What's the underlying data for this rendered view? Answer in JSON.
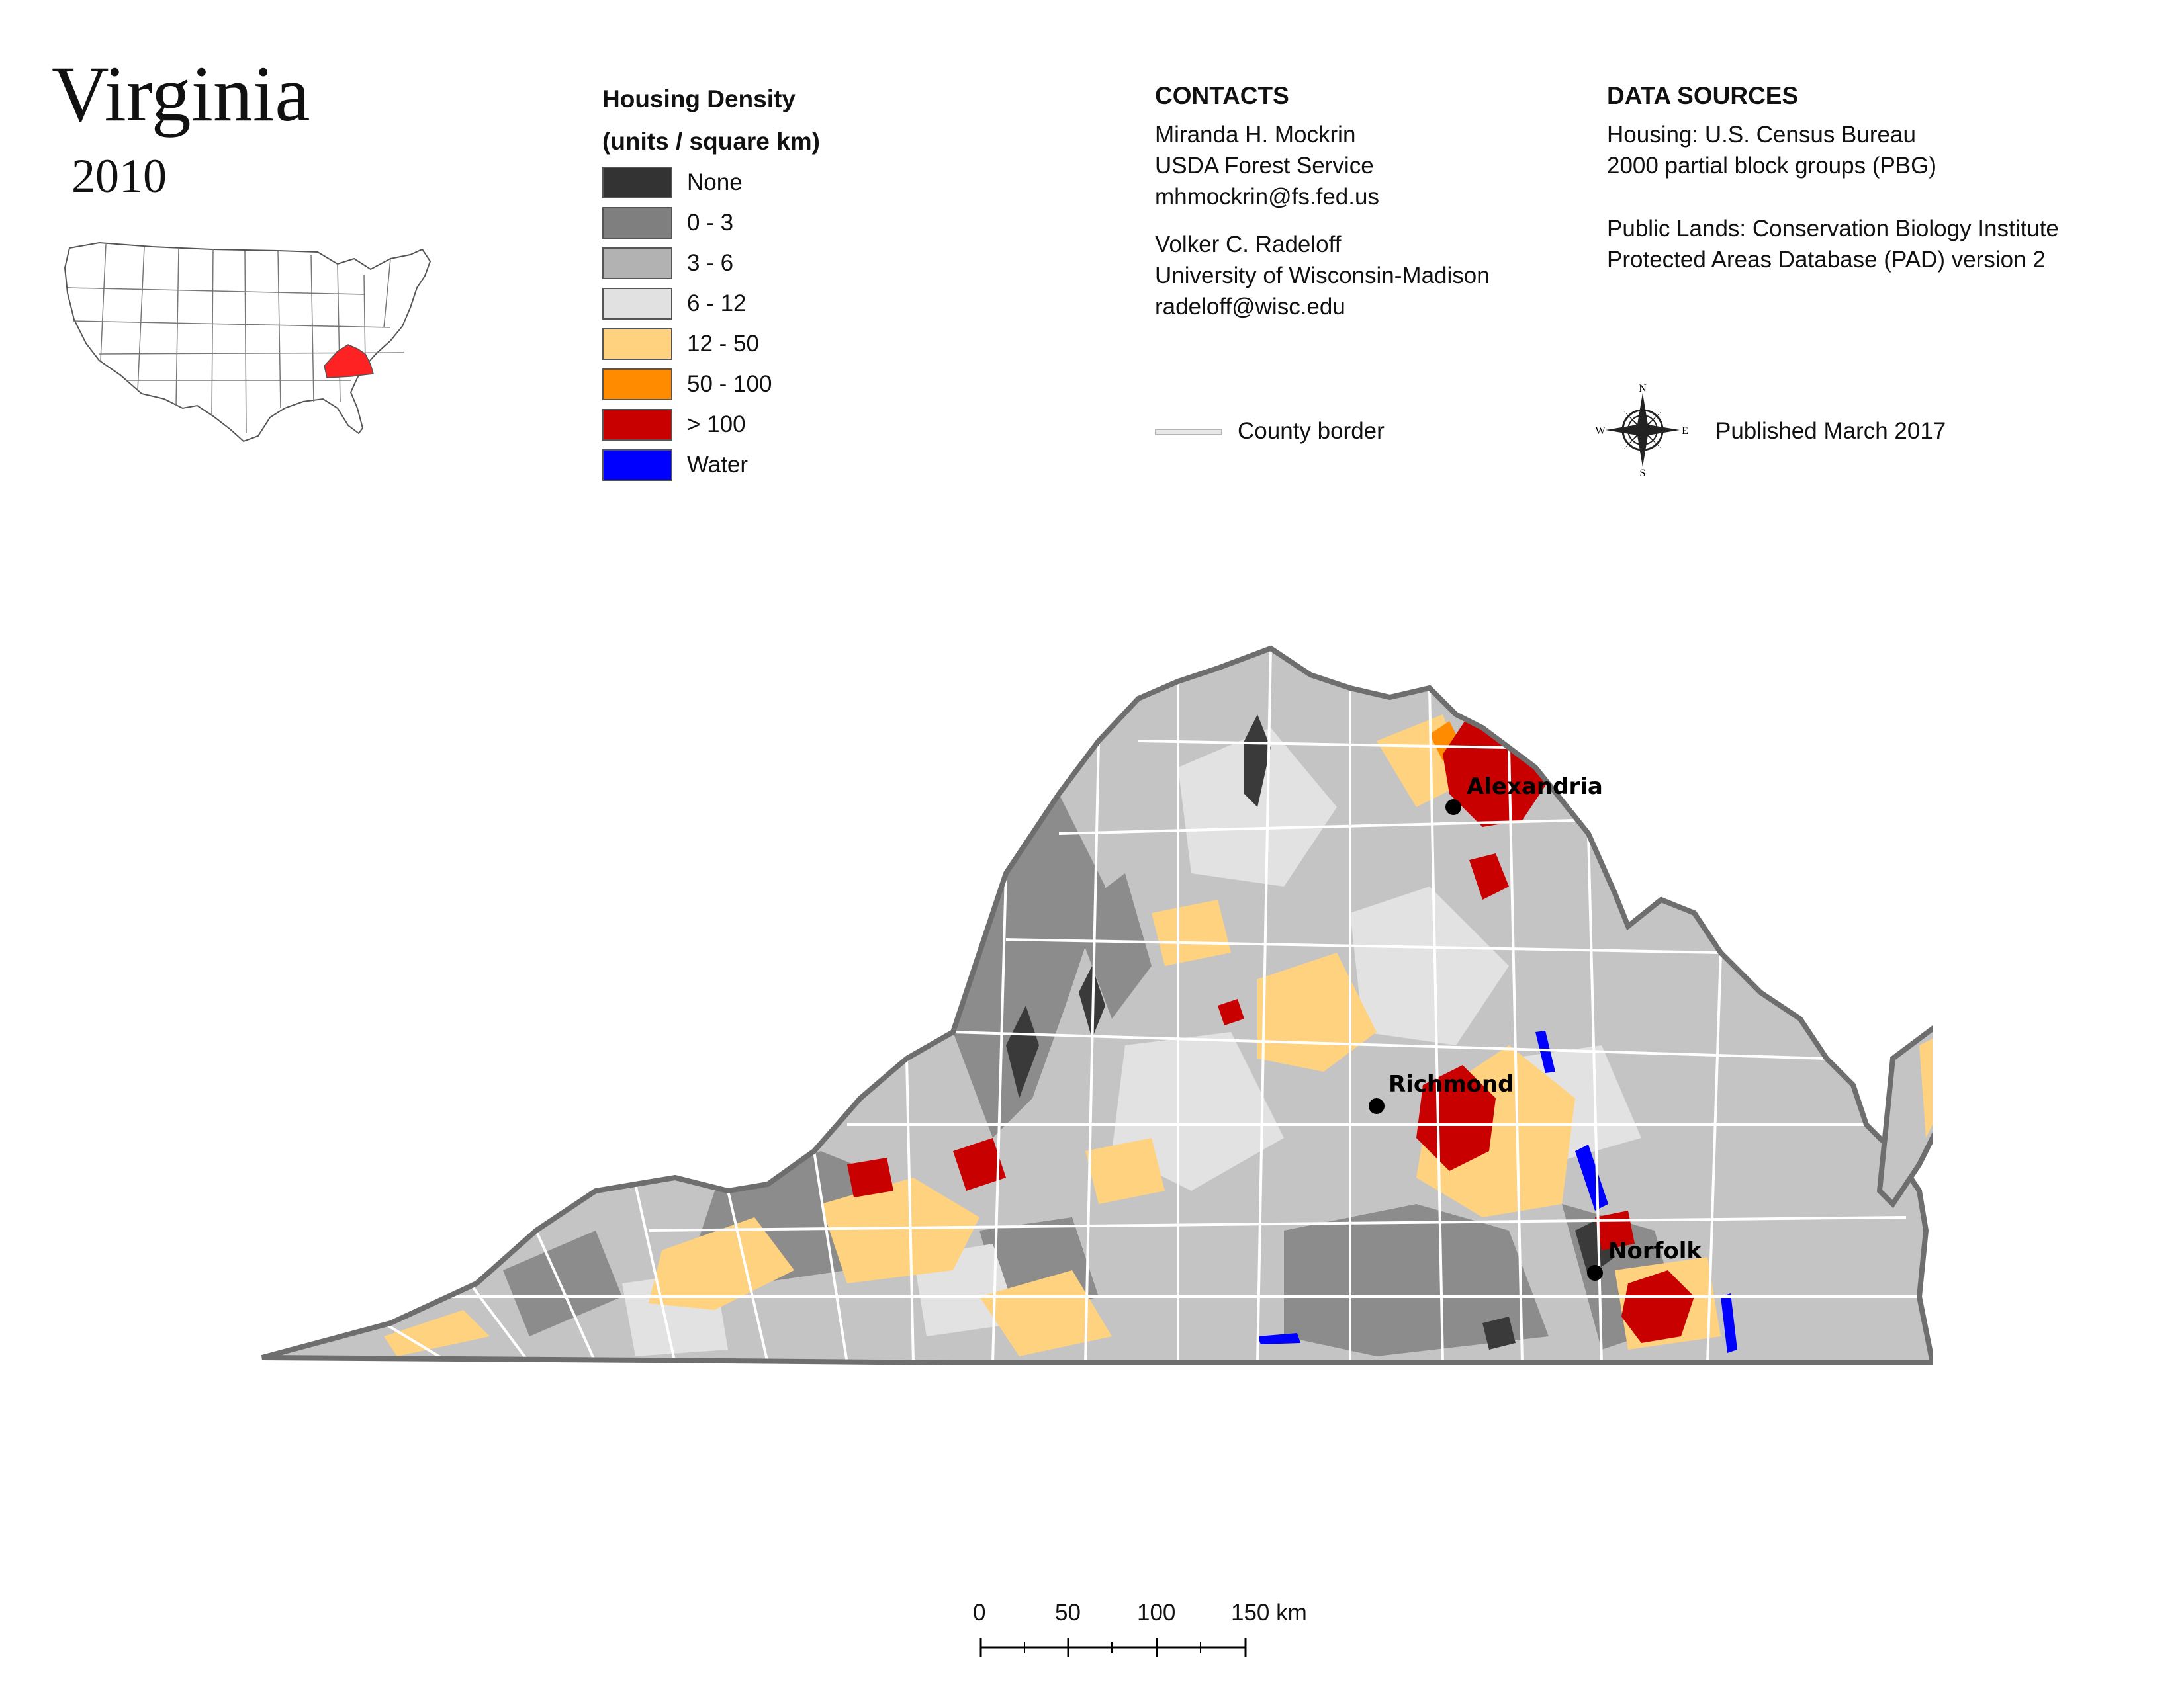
{
  "title": "Virginia",
  "year": "2010",
  "legend": {
    "title_line1": "Housing Density",
    "title_line2": "(units / square km)",
    "items": [
      {
        "label": "None",
        "color": "#333333"
      },
      {
        "label": "0 - 3",
        "color": "#7f7f7f"
      },
      {
        "label": "3 - 6",
        "color": "#b2b2b2"
      },
      {
        "label": "6 - 12",
        "color": "#e1e1e1"
      },
      {
        "label": "12 - 50",
        "color": "#ffd27f"
      },
      {
        "label": "50 - 100",
        "color": "#ff8c00"
      },
      {
        "label": "> 100",
        "color": "#c80000"
      },
      {
        "label": "Water",
        "color": "#0000ff"
      }
    ]
  },
  "contacts": {
    "heading": "CONTACTS",
    "person1": {
      "name": "Miranda H. Mockrin",
      "org": "USDA Forest Service",
      "email": "mhmockrin@fs.fed.us"
    },
    "person2": {
      "name": "Volker C. Radeloff",
      "org": "University of Wisconsin-Madison",
      "email": "radeloff@wisc.edu"
    }
  },
  "sources": {
    "heading": "DATA SOURCES",
    "housing_line1": "Housing: U.S. Census Bureau",
    "housing_line2": "2000 partial block groups (PBG)",
    "lands_line1": "Public Lands: Conservation Biology Institute",
    "lands_line2": "Protected Areas Database (PAD) version 2"
  },
  "county_border_label": "County border",
  "published": "Published March 2017",
  "compass": {
    "n": "N",
    "s": "S",
    "e": "E",
    "w": "W"
  },
  "cities": [
    {
      "name": "Alexandria"
    },
    {
      "name": "Richmond"
    },
    {
      "name": "Norfolk"
    }
  ],
  "scale_bar": {
    "ticks": [
      "0",
      "50",
      "100",
      "150 km"
    ]
  },
  "colors": {
    "state_outline": "#6e6e6e",
    "county_border": "#ffffff",
    "inset_highlight": "#ff2222"
  }
}
